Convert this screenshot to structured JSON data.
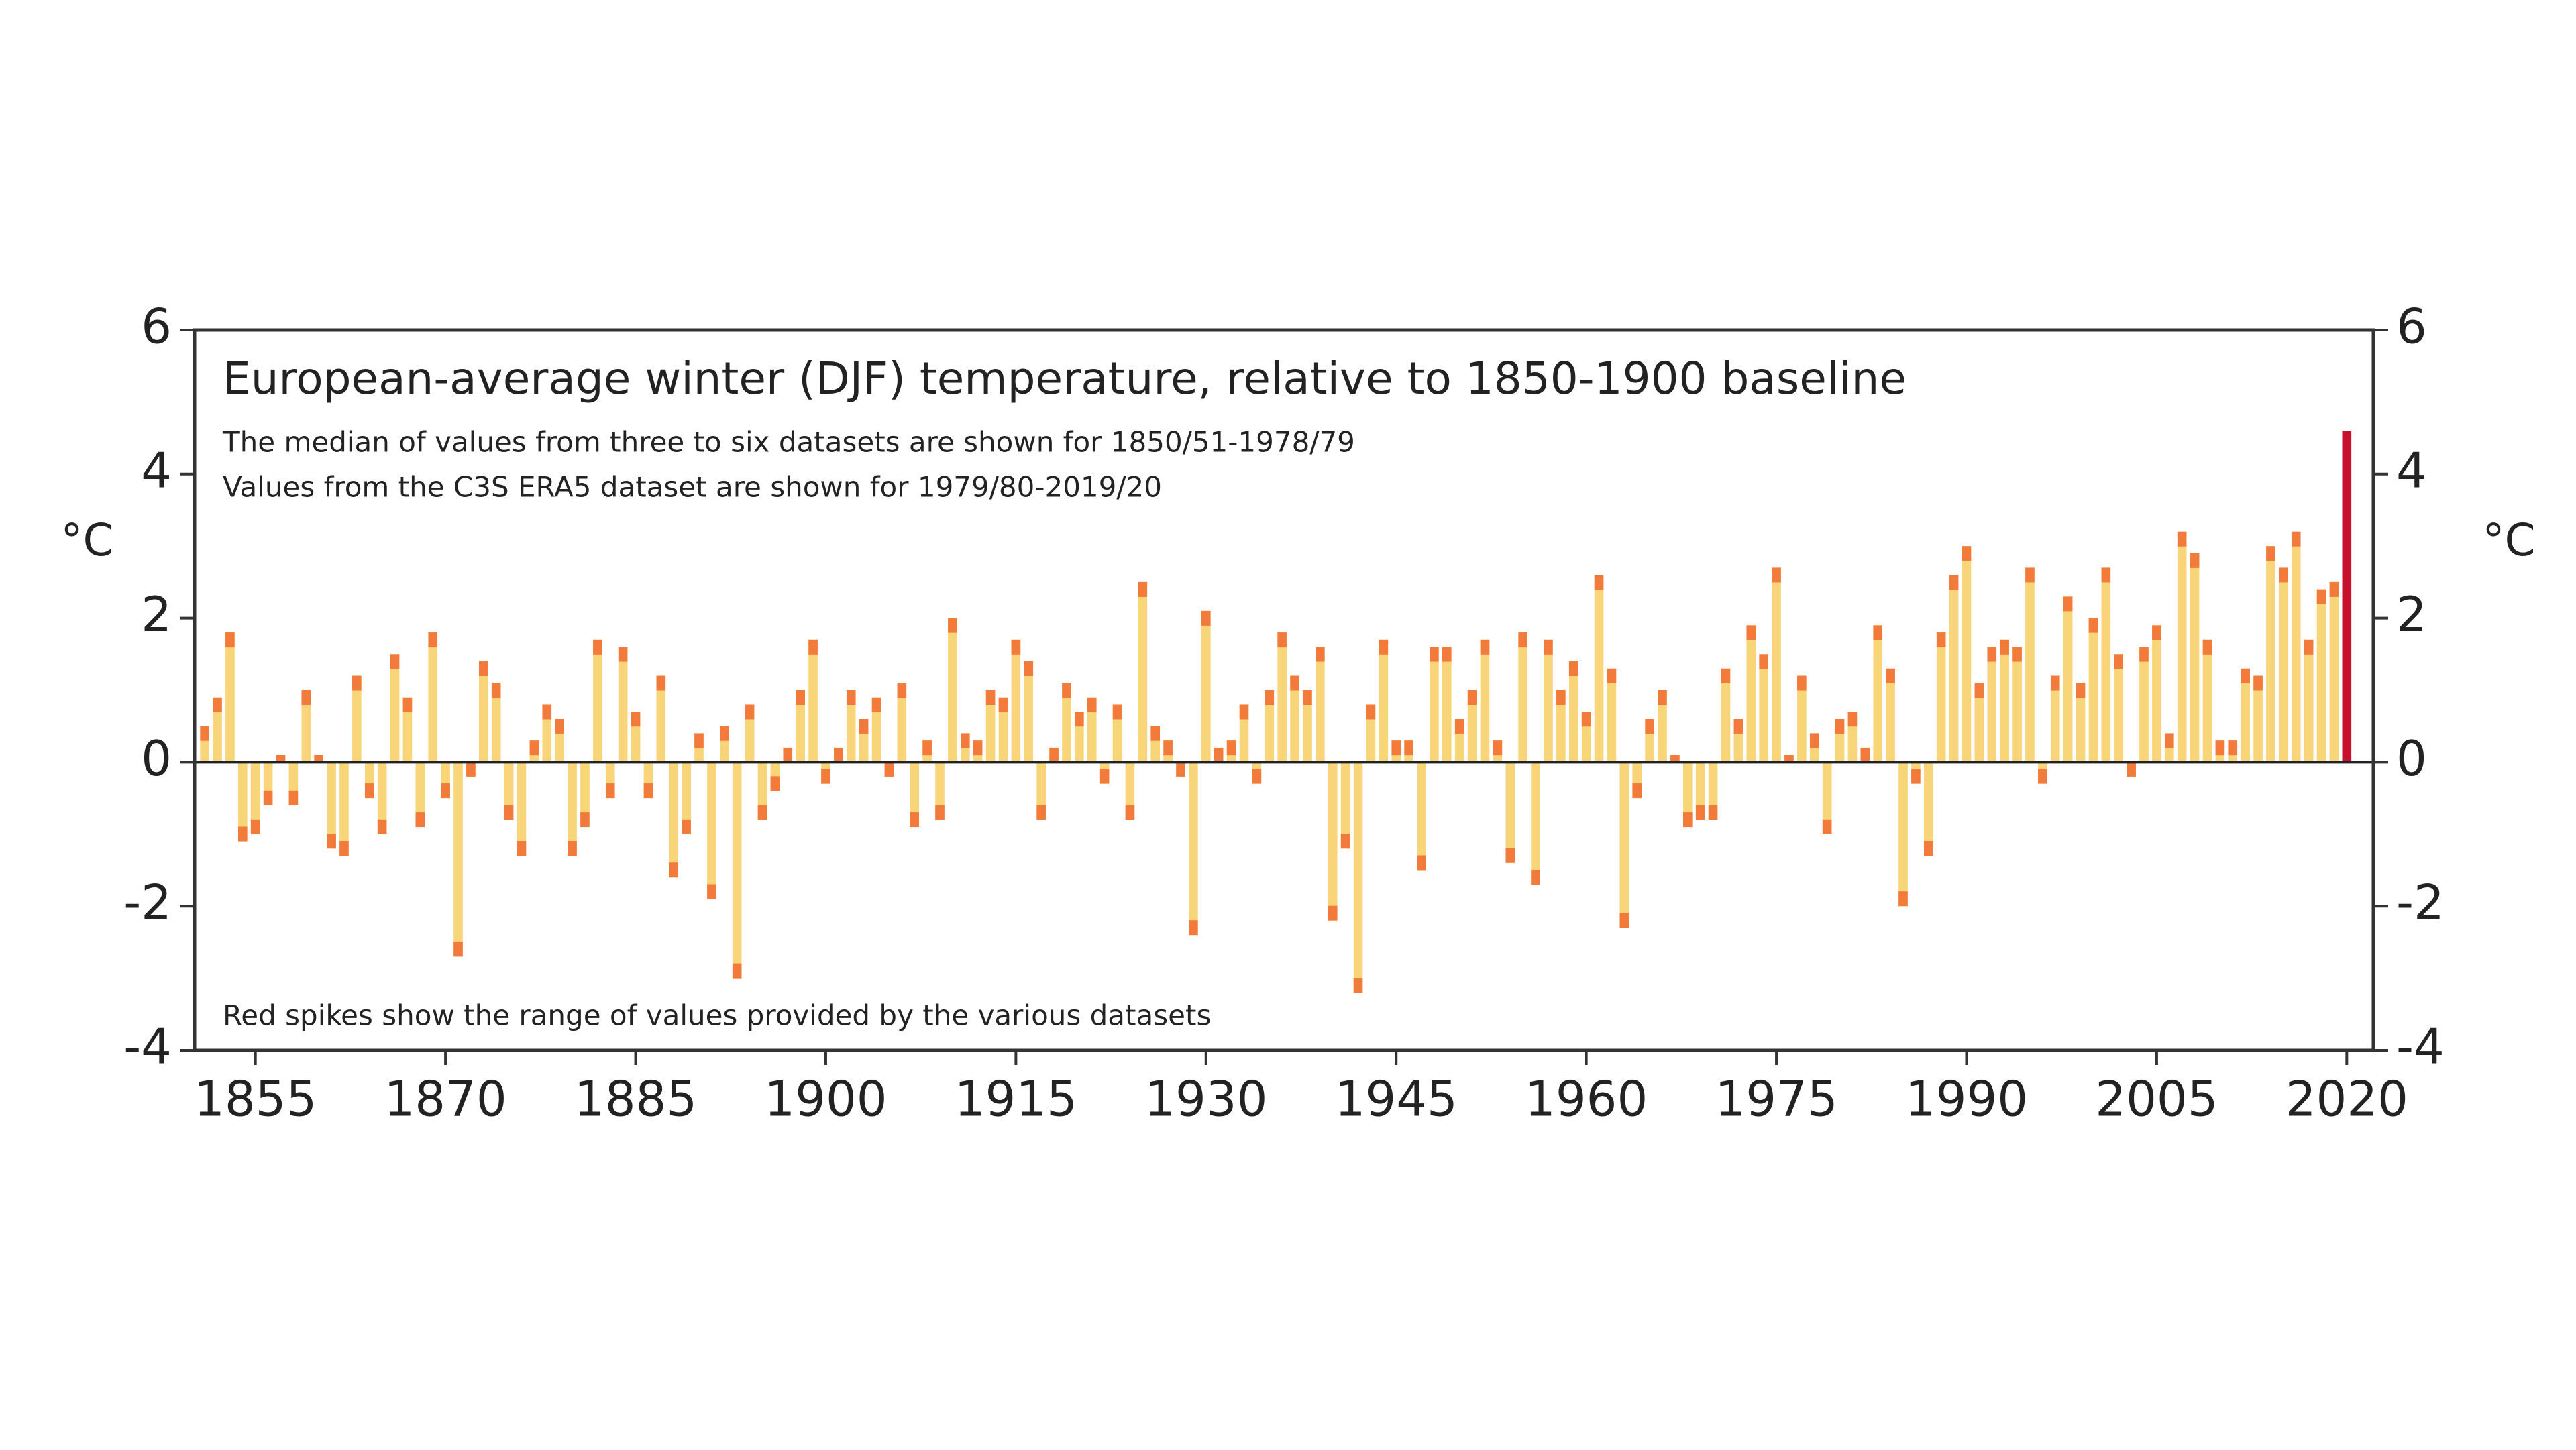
{
  "chart_data": {
    "type": "bar",
    "title": "European-average winter (DJF) temperature, relative to 1850-1900 baseline",
    "subtitle_lines": [
      "The median of values from three to six datasets are shown for 1850/51-1978/79",
      "Values from the C3S ERA5 dataset are shown for 1979/80-2019/20"
    ],
    "footnote": "Red spikes show the range of values provided by the various datasets",
    "y_label": "°C",
    "x": [
      1851,
      1852,
      1853,
      1854,
      1855,
      1856,
      1857,
      1858,
      1859,
      1860,
      1861,
      1862,
      1863,
      1864,
      1865,
      1866,
      1867,
      1868,
      1869,
      1870,
      1871,
      1872,
      1873,
      1874,
      1875,
      1876,
      1877,
      1878,
      1879,
      1880,
      1881,
      1882,
      1883,
      1884,
      1885,
      1886,
      1887,
      1888,
      1889,
      1890,
      1891,
      1892,
      1893,
      1894,
      1895,
      1896,
      1897,
      1898,
      1899,
      1900,
      1901,
      1902,
      1903,
      1904,
      1905,
      1906,
      1907,
      1908,
      1909,
      1910,
      1911,
      1912,
      1913,
      1914,
      1915,
      1916,
      1917,
      1918,
      1919,
      1920,
      1921,
      1922,
      1923,
      1924,
      1925,
      1926,
      1927,
      1928,
      1929,
      1930,
      1931,
      1932,
      1933,
      1934,
      1935,
      1936,
      1937,
      1938,
      1939,
      1940,
      1941,
      1942,
      1943,
      1944,
      1945,
      1946,
      1947,
      1948,
      1949,
      1950,
      1951,
      1952,
      1953,
      1954,
      1955,
      1956,
      1957,
      1958,
      1959,
      1960,
      1961,
      1962,
      1963,
      1964,
      1965,
      1966,
      1967,
      1968,
      1969,
      1970,
      1971,
      1972,
      1973,
      1974,
      1975,
      1976,
      1977,
      1978,
      1979,
      1980,
      1981,
      1982,
      1983,
      1984,
      1985,
      1986,
      1987,
      1988,
      1989,
      1990,
      1991,
      1992,
      1993,
      1994,
      1995,
      1996,
      1997,
      1998,
      1999,
      2000,
      2001,
      2002,
      2003,
      2004,
      2005,
      2006,
      2007,
      2008,
      2009,
      2010,
      2011,
      2012,
      2013,
      2014,
      2015,
      2016,
      2017,
      2018,
      2019,
      2020
    ],
    "values": [
      0.5,
      0.9,
      1.8,
      -1.1,
      -1.0,
      -0.6,
      0.1,
      -0.6,
      1.0,
      0.1,
      -1.2,
      -1.3,
      1.2,
      -0.5,
      -1.0,
      1.5,
      0.9,
      -0.9,
      1.8,
      -0.5,
      -2.7,
      -0.2,
      1.4,
      1.1,
      -0.8,
      -1.3,
      0.3,
      0.8,
      0.6,
      -1.3,
      -0.9,
      1.7,
      -0.5,
      1.6,
      0.7,
      -0.5,
      1.2,
      -1.6,
      -1.0,
      0.4,
      -1.9,
      0.5,
      -3.0,
      0.8,
      -0.8,
      -0.4,
      0.2,
      1.0,
      1.7,
      -0.3,
      0.2,
      1.0,
      0.6,
      0.9,
      -0.2,
      1.1,
      -0.9,
      0.3,
      -0.8,
      2.0,
      0.4,
      0.3,
      1.0,
      0.9,
      1.7,
      1.4,
      -0.8,
      0.2,
      1.1,
      0.7,
      0.9,
      -0.3,
      0.8,
      -0.8,
      2.5,
      0.5,
      0.3,
      -0.2,
      -2.4,
      2.1,
      0.2,
      0.3,
      0.8,
      -0.3,
      1.0,
      1.8,
      1.2,
      1.0,
      1.6,
      -2.2,
      -1.2,
      -3.2,
      0.8,
      1.7,
      0.3,
      0.3,
      -1.5,
      1.6,
      1.6,
      0.6,
      1.0,
      1.7,
      0.3,
      -1.4,
      1.8,
      -1.7,
      1.7,
      1.0,
      1.4,
      0.7,
      2.6,
      1.3,
      -2.3,
      -0.5,
      0.6,
      1.0,
      0.1,
      -0.9,
      -0.8,
      -0.8,
      1.3,
      0.6,
      1.9,
      1.5,
      2.7,
      0.1,
      1.2,
      0.4,
      -1.0,
      0.6,
      0.7,
      0.2,
      1.9,
      1.3,
      -2.0,
      -0.3,
      -1.3,
      1.8,
      2.6,
      3.0,
      1.1,
      1.6,
      1.7,
      1.6,
      2.7,
      -0.3,
      1.2,
      2.3,
      1.1,
      2.0,
      2.7,
      1.5,
      -0.2,
      1.6,
      1.9,
      0.4,
      3.2,
      2.9,
      1.7,
      0.3,
      0.3,
      1.3,
      1.2,
      3.0,
      2.7,
      3.2,
      1.7,
      2.4,
      2.5,
      4.6
    ],
    "color": "#f9d57a",
    "tip_color": "#f27b3c",
    "last_bar_color": "#c8102e",
    "xlim": [
      1850.2,
      2022.1
    ],
    "xticks": [
      1855,
      1870,
      1885,
      1900,
      1915,
      1930,
      1945,
      1960,
      1975,
      1990,
      2005,
      2020
    ],
    "ylim": [
      -4,
      6
    ],
    "yticks": [
      -4,
      -2,
      0,
      2,
      4,
      6
    ],
    "y2lim": [
      -4,
      6
    ],
    "y2ticks": [
      -4,
      -2,
      0,
      2,
      4,
      6
    ]
  }
}
